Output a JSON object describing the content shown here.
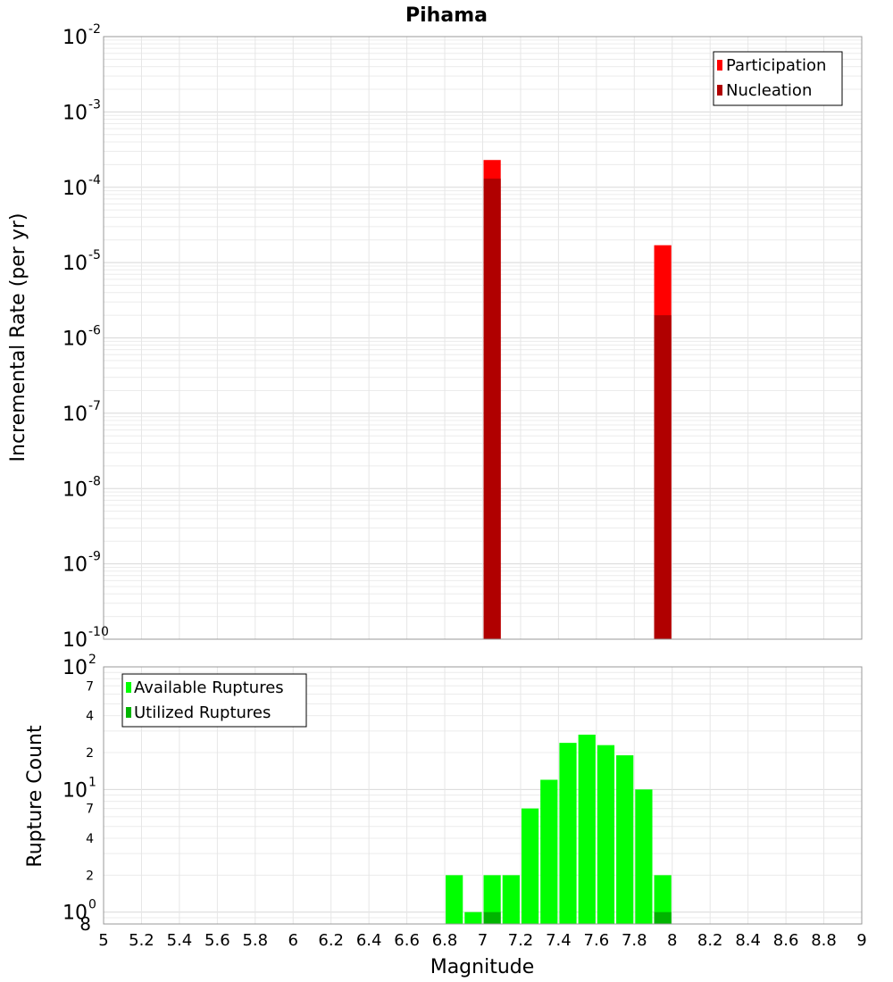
{
  "chart_data": [
    {
      "type": "bar",
      "title": "Pihama",
      "xlabel": "",
      "ylabel": "Incremental Rate (per yr)",
      "y_scale": "log",
      "ylim": [
        1e-10,
        0.01
      ],
      "xlim": [
        5,
        9
      ],
      "bar_width": 0.1,
      "y_ticks": [
        {
          "base": "10",
          "exp": "-2"
        },
        {
          "base": "10",
          "exp": "-3"
        },
        {
          "base": "10",
          "exp": "-4"
        },
        {
          "base": "10",
          "exp": "-5"
        },
        {
          "base": "10",
          "exp": "-6"
        },
        {
          "base": "10",
          "exp": "-7"
        },
        {
          "base": "10",
          "exp": "-8"
        },
        {
          "base": "10",
          "exp": "-9"
        },
        {
          "base": "10",
          "exp": "-10"
        }
      ],
      "legend": {
        "position": "top-right"
      },
      "series": [
        {
          "name": "Participation",
          "color": "#ff0000",
          "x": [
            7.05,
            7.95
          ],
          "values": [
            0.00023,
            1.7e-05
          ]
        },
        {
          "name": "Nucleation",
          "color": "#b00000",
          "x": [
            7.05,
            7.95
          ],
          "values": [
            0.00013,
            2e-06
          ]
        }
      ]
    },
    {
      "type": "bar",
      "title": "",
      "xlabel": "Magnitude",
      "ylabel": "Rupture Count",
      "y_scale": "log",
      "ylim": [
        0.8,
        100
      ],
      "xlim": [
        5,
        9
      ],
      "bar_width": 0.1,
      "x_tick_labels": [
        "5",
        "5.2",
        "5.4",
        "5.6",
        "5.8",
        "6",
        "6.2",
        "6.4",
        "6.6",
        "6.8",
        "7",
        "7.2",
        "7.4",
        "7.6",
        "7.8",
        "8",
        "8.2",
        "8.4",
        "8.6",
        "8.8",
        "9"
      ],
      "y_major_ticks": [
        {
          "base": "10",
          "exp": "2"
        },
        {
          "base": "10",
          "exp": "1"
        },
        {
          "base": "10",
          "exp": "0"
        }
      ],
      "y_minor_labels": [
        "7",
        "4",
        "2",
        "7",
        "4",
        "2",
        "8"
      ],
      "legend": {
        "position": "top-left"
      },
      "series": [
        {
          "name": "Available Ruptures",
          "color": "#00ff00",
          "x": [
            6.85,
            6.95,
            7.05,
            7.15,
            7.25,
            7.35,
            7.45,
            7.55,
            7.65,
            7.75,
            7.85,
            7.95
          ],
          "values": [
            2,
            1,
            2,
            2,
            7,
            12,
            24,
            28,
            23,
            19,
            10,
            2
          ]
        },
        {
          "name": "Utilized Ruptures",
          "color": "#00b400",
          "x": [
            7.05,
            7.95
          ],
          "values": [
            1,
            1
          ]
        }
      ]
    }
  ]
}
